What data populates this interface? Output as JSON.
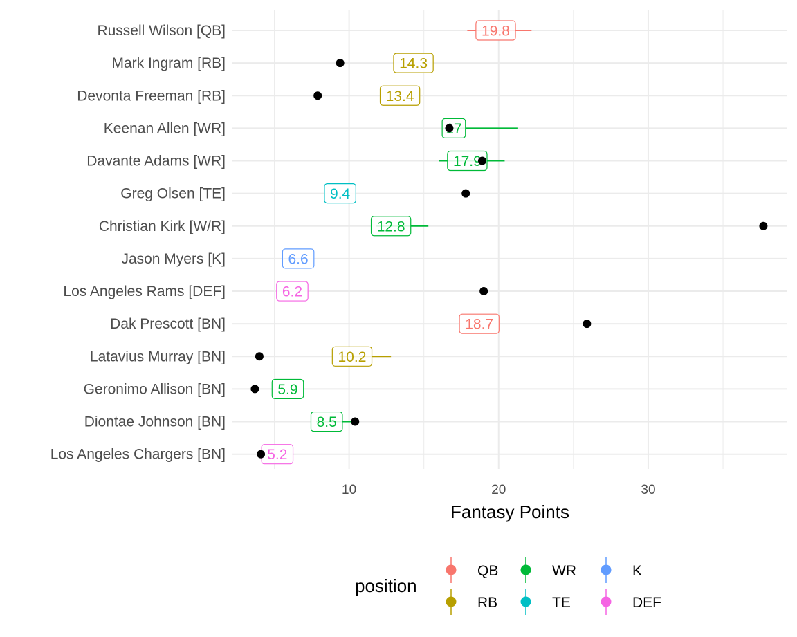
{
  "chart_data": {
    "type": "scatter",
    "xlabel": "Fantasy Points",
    "ylabel": "",
    "xlim": [
      2.2,
      39.3
    ],
    "x_ticks": [
      10,
      20,
      30
    ],
    "x_minor_ticks": [
      5,
      15,
      25,
      35
    ],
    "grid": true,
    "legend": {
      "title": "position",
      "placement": "bottom",
      "entries": [
        {
          "name": "QB",
          "color": "#F8766D"
        },
        {
          "name": "WR",
          "color": "#00BA38"
        },
        {
          "name": "K",
          "color": "#619CFF"
        },
        {
          "name": "RB",
          "color": "#B79F00"
        },
        {
          "name": "TE",
          "color": "#00BFC4"
        },
        {
          "name": "DEF",
          "color": "#F564E3"
        }
      ]
    },
    "players": [
      {
        "name": "Russell Wilson [QB]",
        "position": "QB",
        "projected": 19.8,
        "projected_label": "19.8",
        "range": [
          17.9,
          22.2
        ],
        "actual": null
      },
      {
        "name": "Mark Ingram [RB]",
        "position": "RB",
        "projected": 14.3,
        "projected_label": "14.3",
        "range": null,
        "actual": 9.4
      },
      {
        "name": "Devonta Freeman [RB]",
        "position": "RB",
        "projected": 13.4,
        "projected_label": "13.4",
        "range": null,
        "actual": 7.9
      },
      {
        "name": "Keenan Allen [WR]",
        "position": "WR",
        "projected": 17.0,
        "projected_label": "17",
        "range": [
          16.3,
          21.3
        ],
        "actual": 16.7
      },
      {
        "name": "Davante Adams [WR]",
        "position": "WR",
        "projected": 17.9,
        "projected_label": "17.9",
        "range": [
          16.0,
          20.4
        ],
        "actual": 18.9
      },
      {
        "name": "Greg Olsen [TE]",
        "position": "TE",
        "projected": 9.4,
        "projected_label": "9.4",
        "range": null,
        "actual": 17.8
      },
      {
        "name": "Christian Kirk [W/R]",
        "position": "WR",
        "projected": 12.8,
        "projected_label": "12.8",
        "range": [
          11.8,
          15.3
        ],
        "actual": 37.7
      },
      {
        "name": "Jason Myers [K]",
        "position": "K",
        "projected": 6.6,
        "projected_label": "6.6",
        "range": [
          5.6,
          7.0
        ],
        "actual": null
      },
      {
        "name": "Los Angeles Rams [DEF]",
        "position": "DEF",
        "projected": 6.2,
        "projected_label": "6.2",
        "range": null,
        "actual": 19.0
      },
      {
        "name": "Dak Prescott [BN]",
        "position": "QB",
        "projected": 18.7,
        "projected_label": "18.7",
        "range": null,
        "actual": 25.9
      },
      {
        "name": "Latavius Murray [BN]",
        "position": "RB",
        "projected": 10.2,
        "projected_label": "10.2",
        "range": [
          9.4,
          12.8
        ],
        "actual": 4.0
      },
      {
        "name": "Geronimo Allison [BN]",
        "position": "WR",
        "projected": 5.9,
        "projected_label": "5.9",
        "range": null,
        "actual": 3.7
      },
      {
        "name": "Diontae Johnson [BN]",
        "position": "WR",
        "projected": 8.5,
        "projected_label": "8.5",
        "range": [
          7.8,
          10.4
        ],
        "actual": 10.4
      },
      {
        "name": "Los Angeles Chargers [BN]",
        "position": "DEF",
        "projected": 5.2,
        "projected_label": "5.2",
        "range": null,
        "actual": 4.1
      }
    ]
  }
}
